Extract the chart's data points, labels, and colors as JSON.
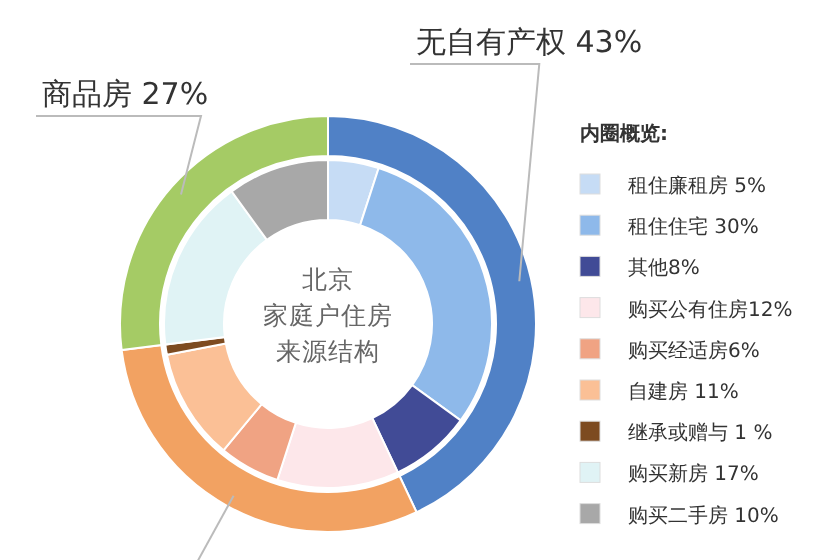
{
  "chart_data": [
    {
      "type": "donut",
      "categories": [
        "无自有产权 43%",
        null,
        "商品房 27%"
      ],
      "values": [
        43,
        30,
        27
      ],
      "colors": [
        "#5081c6",
        "#f2a262",
        "#a5cb65"
      ]
    },
    {
      "type": "donut",
      "title": "北京",
      "subtitle": "家庭户住房来源结构",
      "legend_title": "内圈概览:",
      "legend": "right",
      "categories": [
        "租住廉租房 5%",
        "租住住宅 30%",
        "其他8%",
        "购买公有住房12%",
        "购买经适房6%",
        "自建房 11%",
        "继承或赠与 1 %",
        "购买新房 17%",
        "购买二手房 10%"
      ],
      "values": [
        5,
        30,
        8,
        12,
        6,
        11,
        1,
        17,
        10
      ],
      "colors": [
        "#c6dcf5",
        "#8eb9ea",
        "#414b96",
        "#fde7ea",
        "#f0a383",
        "#fbc096",
        "#7d4b20",
        "#e0f3f5",
        "#a8a8a8"
      ]
    }
  ]
}
